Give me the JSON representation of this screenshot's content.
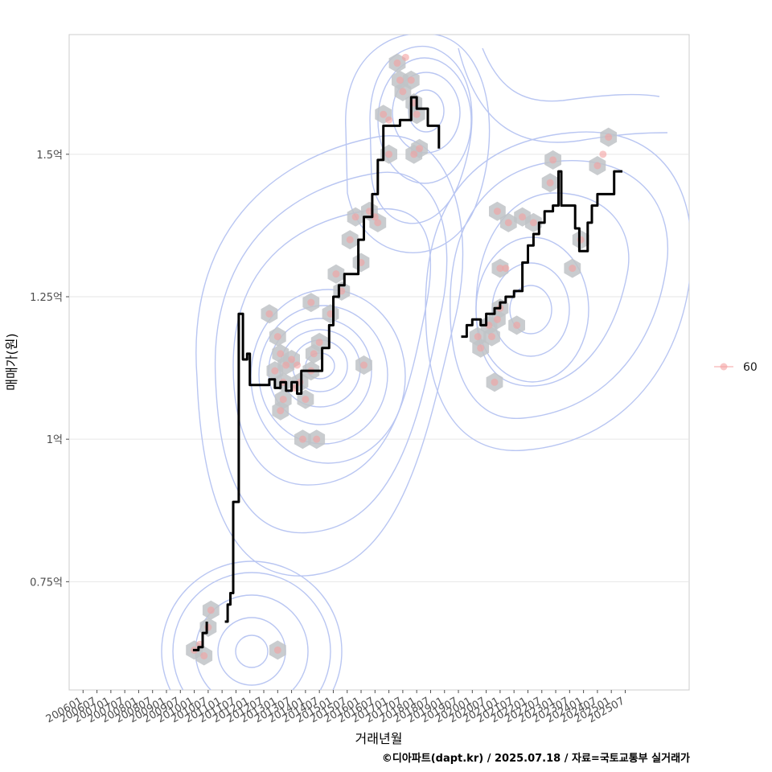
{
  "chart_data": {
    "type": "line",
    "xlabel": "거래년월",
    "ylabel": "매매가(원)",
    "caption": "©디아파트(dapt.kr) / 2025.07.18 / 자료=국토교통부 실거래가",
    "y_unit_note": "억원",
    "xlim": [
      2005.5,
      2027.8
    ],
    "ylim": [
      0.56,
      1.71
    ],
    "grid": true,
    "legend_position": "right",
    "y_ticks": [
      {
        "value": 0.75,
        "label": "0.75억"
      },
      {
        "value": 1.0,
        "label": "1억"
      },
      {
        "value": 1.25,
        "label": "1.25억"
      },
      {
        "value": 1.5,
        "label": "1.5억"
      }
    ],
    "x_ticks": [
      "200601",
      "200607",
      "200701",
      "200707",
      "200801",
      "200807",
      "200901",
      "200907",
      "201001",
      "201007",
      "201101",
      "201107",
      "201201",
      "201207",
      "201301",
      "201307",
      "201401",
      "201407",
      "201501",
      "201507",
      "201601",
      "201607",
      "201701",
      "201707",
      "201801",
      "201807",
      "201901",
      "201907",
      "202001",
      "202007",
      "202101",
      "202107",
      "202201",
      "202207",
      "202301",
      "202307",
      "202401",
      "202407",
      "202501",
      "202507"
    ],
    "series": [
      {
        "name": "60",
        "kind": "scatter",
        "color": "#f4a0a0",
        "points": [
          [
            2010.0,
            0.63
          ],
          [
            2010.2,
            0.64
          ],
          [
            2010.35,
            0.62
          ],
          [
            2010.5,
            0.67
          ],
          [
            2010.6,
            0.7
          ],
          [
            2013.0,
            0.63
          ],
          [
            2012.7,
            1.22
          ],
          [
            2012.9,
            1.12
          ],
          [
            2013.0,
            1.18
          ],
          [
            2013.1,
            1.15
          ],
          [
            2013.2,
            1.1
          ],
          [
            2013.3,
            1.13
          ],
          [
            2013.1,
            1.05
          ],
          [
            2013.2,
            1.07
          ],
          [
            2013.5,
            1.14
          ],
          [
            2013.7,
            1.13
          ],
          [
            2013.6,
            1.09
          ],
          [
            2013.8,
            1.1
          ],
          [
            2014.0,
            1.07
          ],
          [
            2014.2,
            1.12
          ],
          [
            2014.3,
            1.15
          ],
          [
            2014.5,
            1.17
          ],
          [
            2013.9,
            1.0
          ],
          [
            2014.4,
            1.0
          ],
          [
            2014.2,
            1.24
          ],
          [
            2014.9,
            1.22
          ],
          [
            2015.1,
            1.29
          ],
          [
            2015.3,
            1.26
          ],
          [
            2015.6,
            1.35
          ],
          [
            2015.8,
            1.39
          ],
          [
            2016.0,
            1.31
          ],
          [
            2016.1,
            1.13
          ],
          [
            2016.3,
            1.4
          ],
          [
            2016.5,
            1.39
          ],
          [
            2016.6,
            1.38
          ],
          [
            2016.8,
            1.57
          ],
          [
            2017.0,
            1.56
          ],
          [
            2017.0,
            1.5
          ],
          [
            2017.3,
            1.66
          ],
          [
            2017.4,
            1.63
          ],
          [
            2017.6,
            1.67
          ],
          [
            2017.5,
            1.61
          ],
          [
            2017.8,
            1.63
          ],
          [
            2017.9,
            1.59
          ],
          [
            2017.9,
            1.5
          ],
          [
            2018.1,
            1.51
          ],
          [
            2018.0,
            1.57
          ],
          [
            2020.2,
            1.18
          ],
          [
            2020.3,
            1.16
          ],
          [
            2020.6,
            1.2
          ],
          [
            2020.7,
            1.18
          ],
          [
            2020.9,
            1.21
          ],
          [
            2021.0,
            1.23
          ],
          [
            2020.8,
            1.1
          ],
          [
            2020.9,
            1.4
          ],
          [
            2021.0,
            1.3
          ],
          [
            2021.2,
            1.3
          ],
          [
            2021.3,
            1.38
          ],
          [
            2021.6,
            1.2
          ],
          [
            2021.8,
            1.39
          ],
          [
            2022.2,
            1.38
          ],
          [
            2022.8,
            1.45
          ],
          [
            2022.9,
            1.49
          ],
          [
            2023.6,
            1.3
          ],
          [
            2023.9,
            1.35
          ],
          [
            2024.5,
            1.48
          ],
          [
            2024.7,
            1.5
          ],
          [
            2024.9,
            1.53
          ]
        ]
      },
      {
        "name": "",
        "kind": "line",
        "color": "#000000",
        "points": [
          [
            2009.95,
            0.63
          ],
          [
            2010.15,
            0.635
          ],
          [
            2010.3,
            0.66
          ],
          [
            2010.45,
            0.68
          ],
          [
            2011.1,
            0.68
          ],
          [
            2011.2,
            0.71
          ],
          [
            2011.3,
            0.73
          ],
          [
            2011.4,
            0.89
          ],
          [
            2011.6,
            1.22
          ],
          [
            2011.75,
            1.14
          ],
          [
            2011.9,
            1.15
          ],
          [
            2012.0,
            1.095
          ],
          [
            2012.5,
            1.095
          ],
          [
            2012.7,
            1.105
          ],
          [
            2012.9,
            1.09
          ],
          [
            2013.1,
            1.1
          ],
          [
            2013.3,
            1.085
          ],
          [
            2013.5,
            1.1
          ],
          [
            2013.7,
            1.08
          ],
          [
            2013.85,
            1.12
          ],
          [
            2014.3,
            1.12
          ],
          [
            2014.6,
            1.16
          ],
          [
            2014.85,
            1.2
          ],
          [
            2015.0,
            1.25
          ],
          [
            2015.2,
            1.27
          ],
          [
            2015.4,
            1.29
          ],
          [
            2015.7,
            1.29
          ],
          [
            2015.9,
            1.35
          ],
          [
            2016.1,
            1.39
          ],
          [
            2016.4,
            1.43
          ],
          [
            2016.6,
            1.49
          ],
          [
            2016.8,
            1.55
          ],
          [
            2017.2,
            1.55
          ],
          [
            2017.4,
            1.56
          ],
          [
            2017.6,
            1.56
          ],
          [
            2017.8,
            1.6
          ],
          [
            2018.0,
            1.58
          ],
          [
            2018.2,
            1.58
          ],
          [
            2018.4,
            1.55
          ],
          [
            2018.6,
            1.55
          ],
          [
            2018.8,
            1.51
          ],
          [
            2019.6,
            1.18
          ],
          [
            2019.8,
            1.2
          ],
          [
            2020.0,
            1.21
          ],
          [
            2020.3,
            1.2
          ],
          [
            2020.5,
            1.22
          ],
          [
            2020.8,
            1.23
          ],
          [
            2021.0,
            1.24
          ],
          [
            2021.2,
            1.25
          ],
          [
            2021.5,
            1.26
          ],
          [
            2021.8,
            1.31
          ],
          [
            2022.0,
            1.34
          ],
          [
            2022.2,
            1.36
          ],
          [
            2022.4,
            1.38
          ],
          [
            2022.6,
            1.4
          ],
          [
            2022.9,
            1.41
          ],
          [
            2023.1,
            1.47
          ],
          [
            2023.2,
            1.41
          ],
          [
            2023.5,
            1.41
          ],
          [
            2023.7,
            1.37
          ],
          [
            2023.85,
            1.33
          ],
          [
            2024.0,
            1.33
          ],
          [
            2024.15,
            1.38
          ],
          [
            2024.3,
            1.41
          ],
          [
            2024.5,
            1.43
          ],
          [
            2024.9,
            1.43
          ],
          [
            2025.1,
            1.47
          ],
          [
            2025.4,
            1.47
          ]
        ]
      }
    ]
  }
}
